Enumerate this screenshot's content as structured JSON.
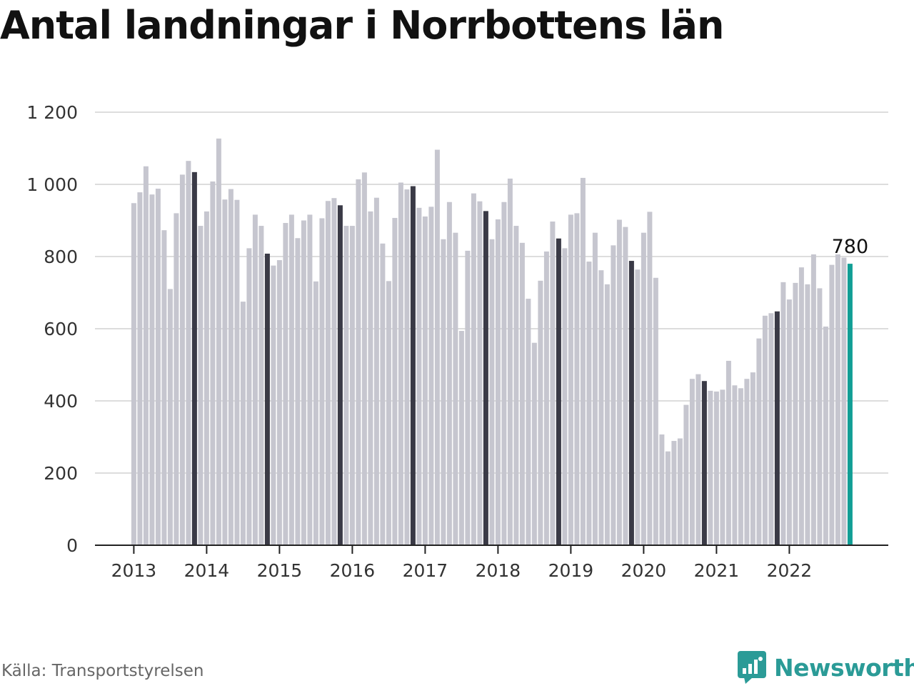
{
  "title": "Antal landningar i Norrbottens län",
  "source": "Källa: Transportstyrelsen",
  "brand": "Newsworthy",
  "brand_icon": "chart-bubble-icon",
  "colors": {
    "bar": "#c6c6cf",
    "bar_december": "#3a3a46",
    "bar_latest": "#119e95",
    "grid": "#dddddd",
    "axis": "#222222",
    "brand": "#2b9b97"
  },
  "chart_data": {
    "type": "bar",
    "title": "Antal landningar i Norrbottens län",
    "xlabel": "",
    "ylabel": "",
    "ylim": [
      0,
      1200
    ],
    "yticks": [
      0,
      200,
      400,
      600,
      800,
      1000,
      1200
    ],
    "ytick_labels": [
      "0",
      "200",
      "400",
      "600",
      "800",
      "1 000",
      "1 200"
    ],
    "xtick_labels": [
      "2013",
      "2014",
      "2015",
      "2016",
      "2017",
      "2018",
      "2019",
      "2020",
      "2021",
      "2022"
    ],
    "grid": true,
    "start": "2013-01",
    "frequency": "monthly",
    "highlight": "December bars dark; latest month teal",
    "latest_label": "780",
    "values": [
      948,
      978,
      1050,
      972,
      988,
      873,
      710,
      920,
      1027,
      1065,
      1034,
      885,
      925,
      1008,
      1127,
      958,
      987,
      957,
      675,
      823,
      916,
      885,
      808,
      775,
      790,
      893,
      916,
      851,
      900,
      916,
      731,
      906,
      954,
      962,
      942,
      885,
      885,
      1014,
      1033,
      925,
      963,
      836,
      732,
      907,
      1005,
      986,
      995,
      935,
      911,
      938,
      1096,
      848,
      951,
      866,
      594,
      816,
      975,
      953,
      926,
      848,
      903,
      951,
      1016,
      885,
      838,
      683,
      561,
      733,
      814,
      897,
      850,
      823,
      916,
      920,
      1018,
      786,
      866,
      762,
      723,
      831,
      902,
      882,
      788,
      764,
      866,
      924,
      741,
      307,
      260,
      289,
      296,
      389,
      461,
      474,
      455,
      428,
      426,
      431,
      511,
      443,
      435,
      461,
      479,
      573,
      636,
      643,
      648,
      729,
      681,
      727,
      770,
      723,
      806,
      712,
      606,
      777,
      806,
      797,
      780
    ]
  }
}
